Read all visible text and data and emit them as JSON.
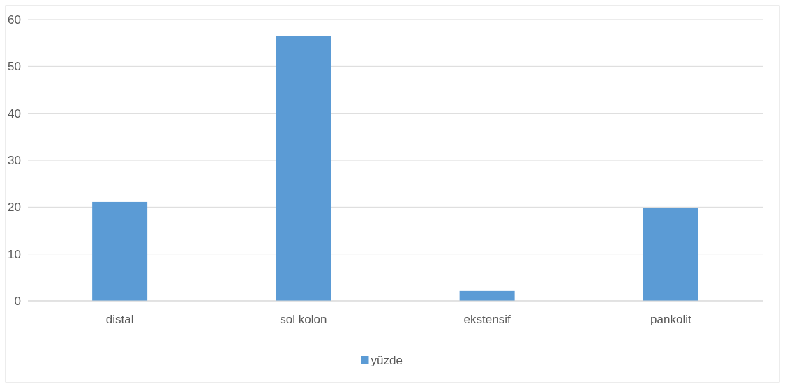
{
  "chart_data": {
    "type": "bar",
    "categories": [
      "distal",
      "sol kolon",
      "ekstensif",
      "pankolit"
    ],
    "series": [
      {
        "name": "yüzde",
        "color": "#5b9bd5",
        "values": [
          21.1,
          56.5,
          2.1,
          19.9
        ]
      }
    ],
    "ylim": [
      0,
      60
    ],
    "yticks": [
      0,
      10,
      20,
      30,
      40,
      50,
      60
    ],
    "grid": "y",
    "legend": "bottom"
  }
}
